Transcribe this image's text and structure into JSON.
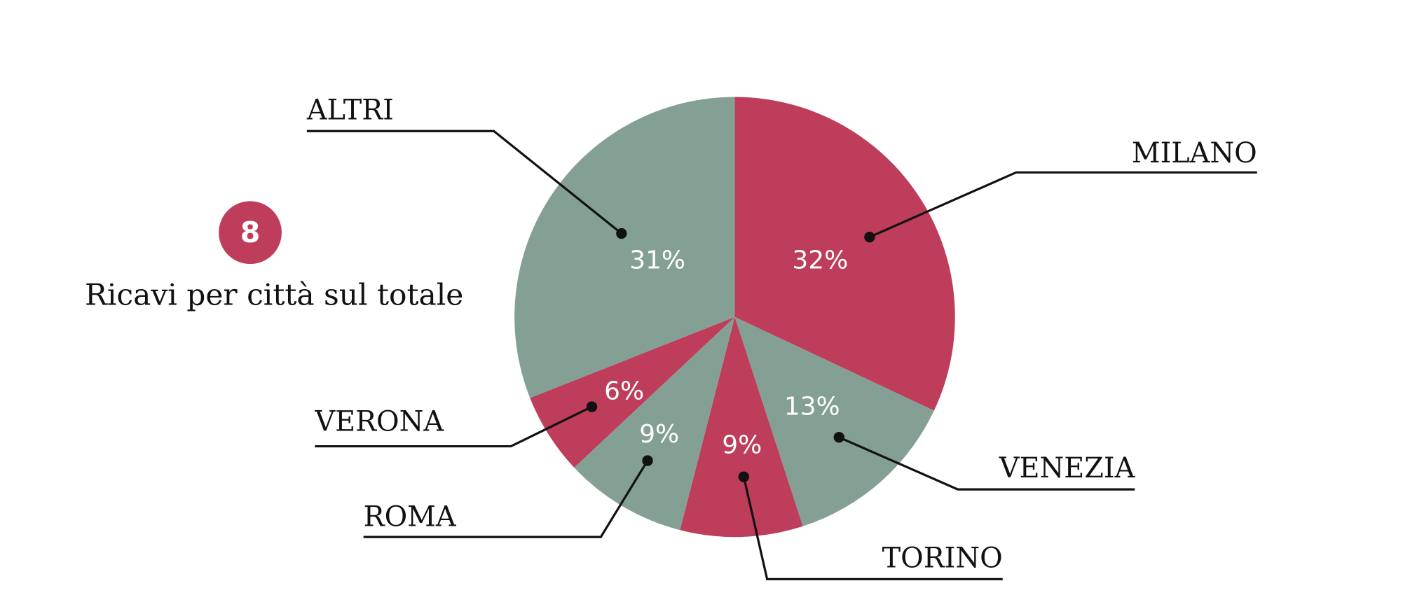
{
  "chart_data": {
    "type": "pie",
    "badge": "8",
    "title": "Ricavi per città sul totale",
    "categories": [
      "MILANO",
      "VENEZIA",
      "TORINO",
      "ROMA",
      "VERONA",
      "ALTRI"
    ],
    "values": [
      32,
      13,
      9,
      9,
      6,
      31
    ],
    "value_labels": [
      "32%",
      "13%",
      "9%",
      "9%",
      "6%",
      "31%"
    ],
    "colors": [
      "#bd3d5a",
      "#84a094",
      "#bd3d5a",
      "#84a094",
      "#bd3d5a",
      "#84a094"
    ]
  }
}
